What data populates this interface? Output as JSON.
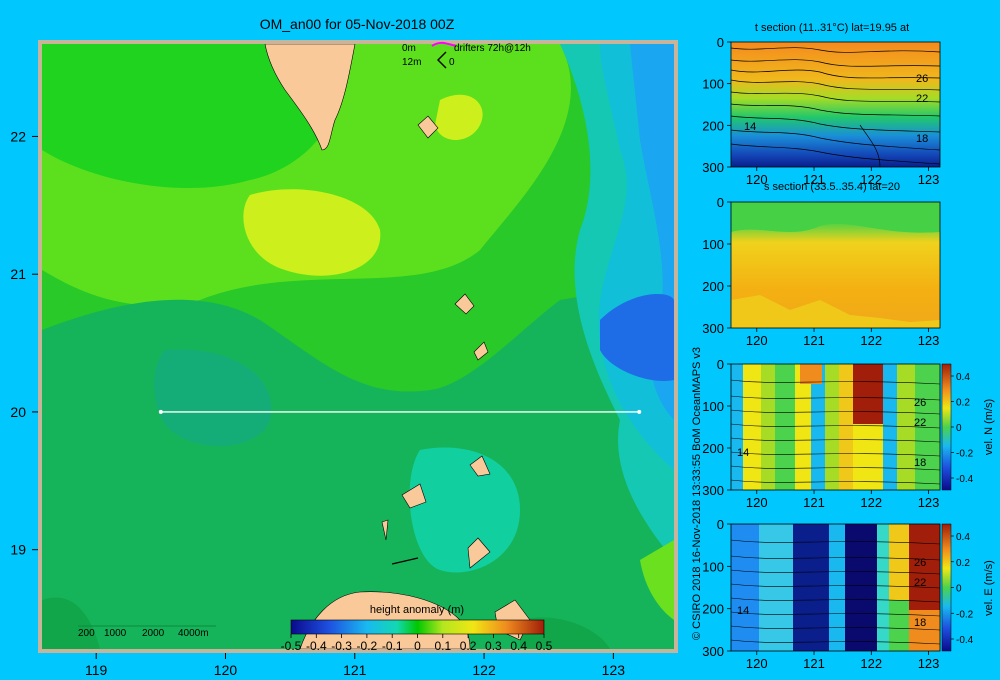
{
  "main": {
    "title": "OM_an00 for 05-Nov-2018 00Z",
    "drifter_legend": [
      "0m",
      "drifters 72h@12h",
      "12m",
      "0"
    ],
    "depth_scale": [
      "200",
      "1000",
      "2000",
      "4000m"
    ]
  },
  "colorbar": {
    "label": "height anomaly (m)",
    "ticks": [
      "-0.5",
      "-0.4",
      "-0.3",
      "-0.2",
      "-0.1",
      "0",
      "0.1",
      "0.2",
      "0.3",
      "0.4",
      "0.5"
    ]
  },
  "credit": "© CSIRO 2018  16-Nov-2018 13:33:55 BoM OceanMAPS v3",
  "colors": {
    "background": "#00c8ff",
    "land": "#f9c99a",
    "frame": "#c8b49a",
    "field_green": "#00c800",
    "section_line": "#ffffff"
  },
  "chart_data": [
    {
      "type": "heatmap",
      "title": "OM_an00 for 05-Nov-2018 00Z",
      "x_ticks": [
        "119",
        "120",
        "121",
        "122",
        "123"
      ],
      "y_ticks": [
        "19",
        "20",
        "21",
        "22"
      ],
      "xlim": [
        118.55,
        123.5
      ],
      "ylim": [
        18.25,
        22.7
      ],
      "colorbar_label": "height anomaly (m)",
      "colorbar_range": [
        -0.5,
        0.5
      ],
      "section_line": {
        "lon": [
          119.5,
          123.2
        ],
        "lat": [
          20,
          20
        ]
      }
    },
    {
      "type": "heatmap",
      "title": "t section (11..31°C) lat=19.95 at",
      "x_ticks": [
        "120",
        "121",
        "122",
        "123"
      ],
      "y_ticks": [
        "0",
        "100",
        "200",
        "300"
      ],
      "contour_labels": [
        "14",
        "26",
        "22",
        "18"
      ]
    },
    {
      "type": "heatmap",
      "title": "s section (33.5..35.4) lat=20",
      "x_ticks": [
        "120",
        "121",
        "122",
        "123"
      ],
      "y_ticks": [
        "0",
        "100",
        "200",
        "300"
      ]
    },
    {
      "type": "heatmap",
      "title": "",
      "x_ticks": [
        "120",
        "121",
        "122",
        "123"
      ],
      "y_ticks": [
        "0",
        "100",
        "200",
        "300"
      ],
      "contour_labels": [
        "14",
        "26",
        "22",
        "18"
      ],
      "colorbar_label": "vel. N (m/s)",
      "colorbar_ticks": [
        "0.4",
        "0.2",
        "0",
        "-0.2",
        "-0.4"
      ]
    },
    {
      "type": "heatmap",
      "title": "",
      "x_ticks": [
        "120",
        "121",
        "122",
        "123"
      ],
      "y_ticks": [
        "0",
        "100",
        "200",
        "300"
      ],
      "contour_labels": [
        "14",
        "26",
        "22",
        "18"
      ],
      "colorbar_label": "vel. E (m/s)",
      "colorbar_ticks": [
        "0.4",
        "0.2",
        "0",
        "-0.2",
        "-0.4"
      ]
    }
  ]
}
